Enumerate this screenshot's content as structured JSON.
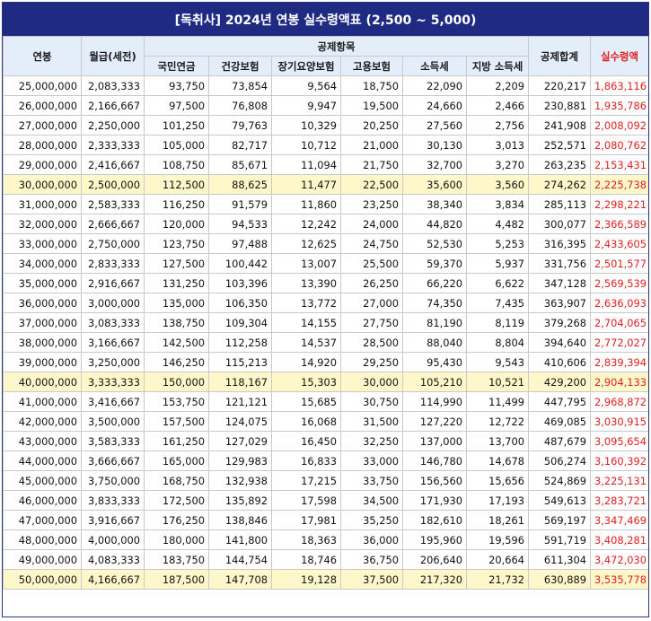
{
  "title": "[독취사] 2024년 연봉 실수령액표 (2,500 ~ 5,000)",
  "colors": {
    "header_bg": "#1f2b82",
    "header_text": "#ffffff",
    "column_header_bg": "#e4eefb",
    "highlight_row": "#fdf7c9",
    "net_pay": "#e02020"
  },
  "headers": {
    "annual_salary": "연봉",
    "monthly_pretax": "월급(세전)",
    "deductions_group": "공제항목",
    "national_pension": "국민연금",
    "health_insurance": "건강보험",
    "long_term_care": "장기요양보험",
    "employment_insurance": "고용보험",
    "income_tax": "소득세",
    "local_income_tax": "지방 소득세",
    "total_deduction": "공제합계",
    "net_pay": "실수령액"
  },
  "rows": [
    {
      "salary": "25,000,000",
      "monthly": "2,083,333",
      "pension": "93,750",
      "health": "73,854",
      "ltc": "9,564",
      "employment": "18,750",
      "income_tax": "22,090",
      "local_tax": "2,209",
      "total": "220,217",
      "net": "1,863,116",
      "highlight": false
    },
    {
      "salary": "26,000,000",
      "monthly": "2,166,667",
      "pension": "97,500",
      "health": "76,808",
      "ltc": "9,947",
      "employment": "19,500",
      "income_tax": "24,660",
      "local_tax": "2,466",
      "total": "230,881",
      "net": "1,935,786",
      "highlight": false
    },
    {
      "salary": "27,000,000",
      "monthly": "2,250,000",
      "pension": "101,250",
      "health": "79,763",
      "ltc": "10,329",
      "employment": "20,250",
      "income_tax": "27,560",
      "local_tax": "2,756",
      "total": "241,908",
      "net": "2,008,092",
      "highlight": false
    },
    {
      "salary": "28,000,000",
      "monthly": "2,333,333",
      "pension": "105,000",
      "health": "82,717",
      "ltc": "10,712",
      "employment": "21,000",
      "income_tax": "30,130",
      "local_tax": "3,013",
      "total": "252,571",
      "net": "2,080,762",
      "highlight": false
    },
    {
      "salary": "29,000,000",
      "monthly": "2,416,667",
      "pension": "108,750",
      "health": "85,671",
      "ltc": "11,094",
      "employment": "21,750",
      "income_tax": "32,700",
      "local_tax": "3,270",
      "total": "263,235",
      "net": "2,153,431",
      "highlight": false
    },
    {
      "salary": "30,000,000",
      "monthly": "2,500,000",
      "pension": "112,500",
      "health": "88,625",
      "ltc": "11,477",
      "employment": "22,500",
      "income_tax": "35,600",
      "local_tax": "3,560",
      "total": "274,262",
      "net": "2,225,738",
      "highlight": true
    },
    {
      "salary": "31,000,000",
      "monthly": "2,583,333",
      "pension": "116,250",
      "health": "91,579",
      "ltc": "11,860",
      "employment": "23,250",
      "income_tax": "38,340",
      "local_tax": "3,834",
      "total": "285,113",
      "net": "2,298,221",
      "highlight": false
    },
    {
      "salary": "32,000,000",
      "monthly": "2,666,667",
      "pension": "120,000",
      "health": "94,533",
      "ltc": "12,242",
      "employment": "24,000",
      "income_tax": "44,820",
      "local_tax": "4,482",
      "total": "300,077",
      "net": "2,366,589",
      "highlight": false
    },
    {
      "salary": "33,000,000",
      "monthly": "2,750,000",
      "pension": "123,750",
      "health": "97,488",
      "ltc": "12,625",
      "employment": "24,750",
      "income_tax": "52,530",
      "local_tax": "5,253",
      "total": "316,395",
      "net": "2,433,605",
      "highlight": false
    },
    {
      "salary": "34,000,000",
      "monthly": "2,833,333",
      "pension": "127,500",
      "health": "100,442",
      "ltc": "13,007",
      "employment": "25,500",
      "income_tax": "59,370",
      "local_tax": "5,937",
      "total": "331,756",
      "net": "2,501,577",
      "highlight": false
    },
    {
      "salary": "35,000,000",
      "monthly": "2,916,667",
      "pension": "131,250",
      "health": "103,396",
      "ltc": "13,390",
      "employment": "26,250",
      "income_tax": "66,220",
      "local_tax": "6,622",
      "total": "347,128",
      "net": "2,569,539",
      "highlight": false
    },
    {
      "salary": "36,000,000",
      "monthly": "3,000,000",
      "pension": "135,000",
      "health": "106,350",
      "ltc": "13,772",
      "employment": "27,000",
      "income_tax": "74,350",
      "local_tax": "7,435",
      "total": "363,907",
      "net": "2,636,093",
      "highlight": false
    },
    {
      "salary": "37,000,000",
      "monthly": "3,083,333",
      "pension": "138,750",
      "health": "109,304",
      "ltc": "14,155",
      "employment": "27,750",
      "income_tax": "81,190",
      "local_tax": "8,119",
      "total": "379,268",
      "net": "2,704,065",
      "highlight": false
    },
    {
      "salary": "38,000,000",
      "monthly": "3,166,667",
      "pension": "142,500",
      "health": "112,258",
      "ltc": "14,537",
      "employment": "28,500",
      "income_tax": "88,040",
      "local_tax": "8,804",
      "total": "394,640",
      "net": "2,772,027",
      "highlight": false
    },
    {
      "salary": "39,000,000",
      "monthly": "3,250,000",
      "pension": "146,250",
      "health": "115,213",
      "ltc": "14,920",
      "employment": "29,250",
      "income_tax": "95,430",
      "local_tax": "9,543",
      "total": "410,606",
      "net": "2,839,394",
      "highlight": false
    },
    {
      "salary": "40,000,000",
      "monthly": "3,333,333",
      "pension": "150,000",
      "health": "118,167",
      "ltc": "15,303",
      "employment": "30,000",
      "income_tax": "105,210",
      "local_tax": "10,521",
      "total": "429,200",
      "net": "2,904,133",
      "highlight": true
    },
    {
      "salary": "41,000,000",
      "monthly": "3,416,667",
      "pension": "153,750",
      "health": "121,121",
      "ltc": "15,685",
      "employment": "30,750",
      "income_tax": "114,990",
      "local_tax": "11,499",
      "total": "447,795",
      "net": "2,968,872",
      "highlight": false
    },
    {
      "salary": "42,000,000",
      "monthly": "3,500,000",
      "pension": "157,500",
      "health": "124,075",
      "ltc": "16,068",
      "employment": "31,500",
      "income_tax": "127,220",
      "local_tax": "12,722",
      "total": "469,085",
      "net": "3,030,915",
      "highlight": false
    },
    {
      "salary": "43,000,000",
      "monthly": "3,583,333",
      "pension": "161,250",
      "health": "127,029",
      "ltc": "16,450",
      "employment": "32,250",
      "income_tax": "137,000",
      "local_tax": "13,700",
      "total": "487,679",
      "net": "3,095,654",
      "highlight": false
    },
    {
      "salary": "44,000,000",
      "monthly": "3,666,667",
      "pension": "165,000",
      "health": "129,983",
      "ltc": "16,833",
      "employment": "33,000",
      "income_tax": "146,780",
      "local_tax": "14,678",
      "total": "506,274",
      "net": "3,160,392",
      "highlight": false
    },
    {
      "salary": "45,000,000",
      "monthly": "3,750,000",
      "pension": "168,750",
      "health": "132,938",
      "ltc": "17,215",
      "employment": "33,750",
      "income_tax": "156,560",
      "local_tax": "15,656",
      "total": "524,869",
      "net": "3,225,131",
      "highlight": false
    },
    {
      "salary": "46,000,000",
      "monthly": "3,833,333",
      "pension": "172,500",
      "health": "135,892",
      "ltc": "17,598",
      "employment": "34,500",
      "income_tax": "171,930",
      "local_tax": "17,193",
      "total": "549,613",
      "net": "3,283,721",
      "highlight": false
    },
    {
      "salary": "47,000,000",
      "monthly": "3,916,667",
      "pension": "176,250",
      "health": "138,846",
      "ltc": "17,981",
      "employment": "35,250",
      "income_tax": "182,610",
      "local_tax": "18,261",
      "total": "569,197",
      "net": "3,347,469",
      "highlight": false
    },
    {
      "salary": "48,000,000",
      "monthly": "4,000,000",
      "pension": "180,000",
      "health": "141,800",
      "ltc": "18,363",
      "employment": "36,000",
      "income_tax": "195,960",
      "local_tax": "19,596",
      "total": "591,719",
      "net": "3,408,281",
      "highlight": false
    },
    {
      "salary": "49,000,000",
      "monthly": "4,083,333",
      "pension": "183,750",
      "health": "144,754",
      "ltc": "18,746",
      "employment": "36,750",
      "income_tax": "206,640",
      "local_tax": "20,664",
      "total": "611,304",
      "net": "3,472,030",
      "highlight": false
    },
    {
      "salary": "50,000,000",
      "monthly": "4,166,667",
      "pension": "187,500",
      "health": "147,708",
      "ltc": "19,128",
      "employment": "37,500",
      "income_tax": "217,320",
      "local_tax": "21,732",
      "total": "630,889",
      "net": "3,535,778",
      "highlight": true
    }
  ]
}
